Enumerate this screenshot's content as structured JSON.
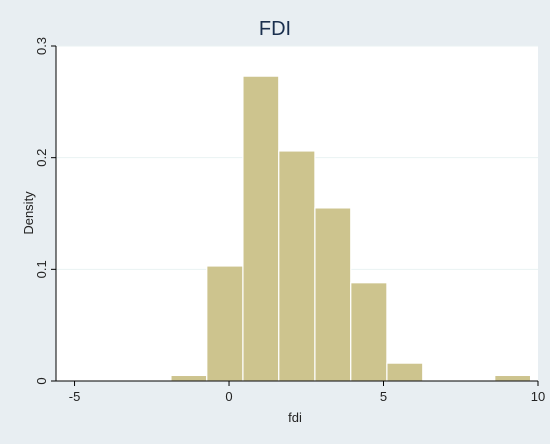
{
  "chart_data": {
    "type": "bar",
    "title": "FDI",
    "xlabel": "fdi",
    "ylabel": "Density",
    "xlim": [
      -5.6,
      10.0
    ],
    "ylim": [
      0,
      0.3
    ],
    "xticks": [
      -5,
      0,
      5,
      10
    ],
    "yticks": [
      0,
      0.1,
      0.2,
      0.3
    ],
    "ytick_labels": [
      "0",
      "0.1",
      "0.2",
      "0.3"
    ],
    "grid": true,
    "bins": [
      {
        "x0": -1.88,
        "x1": -0.72,
        "value": 0.005
      },
      {
        "x0": -0.72,
        "x1": 0.45,
        "value": 0.103
      },
      {
        "x0": 0.45,
        "x1": 1.61,
        "value": 0.273
      },
      {
        "x0": 1.61,
        "x1": 2.78,
        "value": 0.206
      },
      {
        "x0": 2.78,
        "x1": 3.94,
        "value": 0.155
      },
      {
        "x0": 3.94,
        "x1": 5.11,
        "value": 0.088
      },
      {
        "x0": 5.11,
        "x1": 6.27,
        "value": 0.016
      },
      {
        "x0": 8.6,
        "x1": 9.76,
        "value": 0.005
      }
    ],
    "colors": {
      "bar_fill": "#cdc48e",
      "bar_stroke": "#ffffff",
      "background": "#e8eef2",
      "plot_bg": "#ffffff",
      "title_color": "#1a2f4e"
    }
  }
}
